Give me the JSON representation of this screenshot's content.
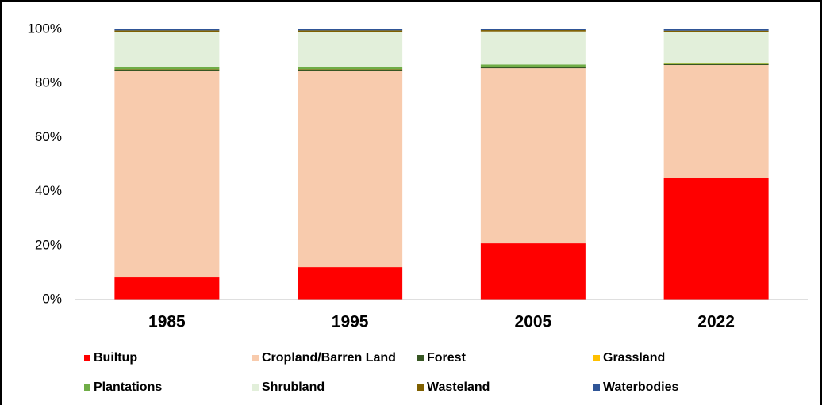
{
  "chart_data": {
    "type": "stacked_bar",
    "categories": [
      "1985",
      "1995",
      "2005",
      "2022"
    ],
    "series": [
      {
        "name": "Builtup",
        "color": "#ff0000",
        "values": [
          8.2,
          12.0,
          20.8,
          44.9
        ]
      },
      {
        "name": "Cropland/Barren Land",
        "color": "#f8cbad",
        "values": [
          76.5,
          72.7,
          64.8,
          41.9
        ]
      },
      {
        "name": "Forest",
        "color": "#375623",
        "values": [
          0.5,
          0.5,
          0.5,
          0.3
        ]
      },
      {
        "name": "Grassland",
        "color": "#ffc000",
        "values": [
          0.1,
          0.1,
          0.1,
          0.1
        ]
      },
      {
        "name": "Plantations",
        "color": "#70ad47",
        "values": [
          0.8,
          0.8,
          0.8,
          0.3
        ]
      },
      {
        "name": "Shrubland",
        "color": "#e2efda",
        "values": [
          13.0,
          13.0,
          12.2,
          11.5
        ]
      },
      {
        "name": "Wasteland",
        "color": "#7f6000",
        "values": [
          0.5,
          0.5,
          0.5,
          0.5
        ]
      },
      {
        "name": "Waterbodies",
        "color": "#2f5597",
        "values": [
          0.4,
          0.4,
          0.3,
          0.5
        ]
      }
    ],
    "ylim": [
      0,
      100
    ],
    "yticks": [
      {
        "value": 0,
        "label": "0%"
      },
      {
        "value": 20,
        "label": "20%"
      },
      {
        "value": 40,
        "label": "40%"
      },
      {
        "value": 60,
        "label": "60%"
      },
      {
        "value": 80,
        "label": "80%"
      },
      {
        "value": 100,
        "label": "100%"
      }
    ],
    "grid": false,
    "legend": "bottom"
  }
}
